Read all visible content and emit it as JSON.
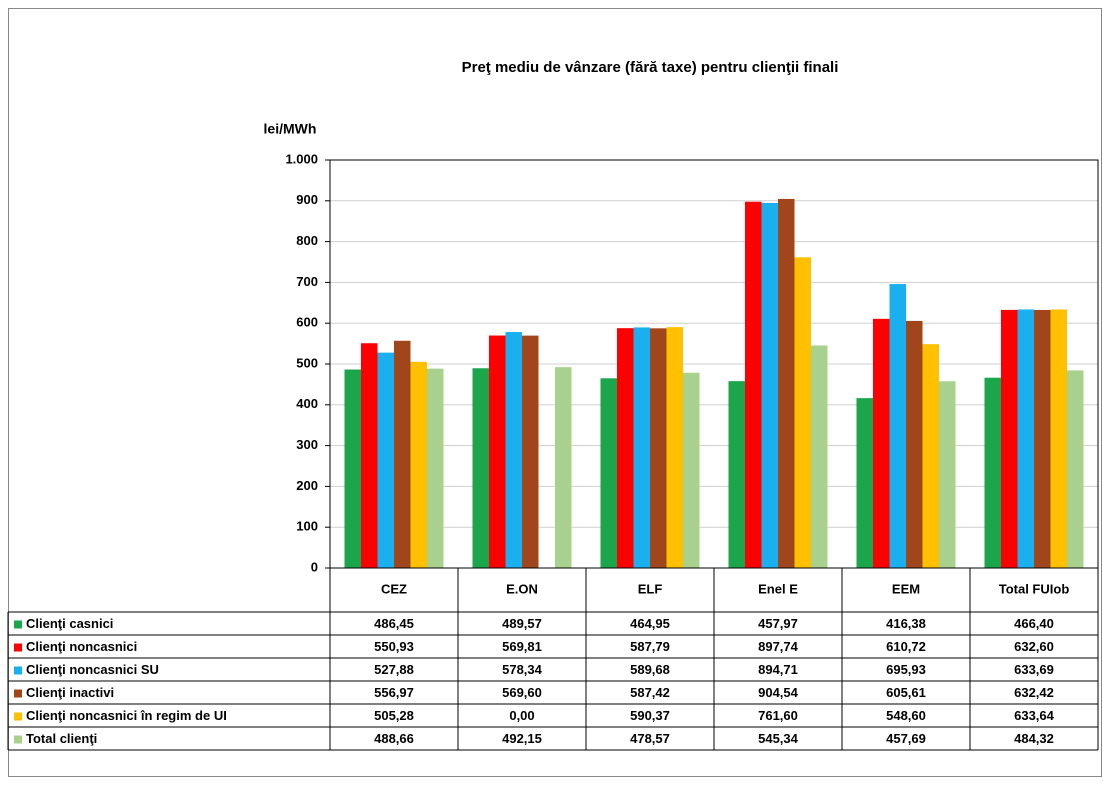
{
  "chart_data": {
    "type": "bar",
    "title": "Preţ mediu de vânzare (fără taxe) pentru clienţii finali",
    "y_label": "lei/MWh",
    "categories": [
      "CEZ",
      "E.ON",
      "ELF",
      "Enel E",
      "EEM",
      "Total FUIob"
    ],
    "ylim": [
      0,
      1000
    ],
    "yticks": [
      0,
      100,
      200,
      300,
      400,
      500,
      600,
      700,
      800,
      900,
      {
        "value": 1000,
        "label": "1.000"
      }
    ],
    "grid": true,
    "series": [
      {
        "name": "Clienţi casnici",
        "color": "#1aa64a",
        "values": [
          486.45,
          489.57,
          464.95,
          457.97,
          416.38,
          466.4
        ],
        "value_labels": [
          "486,45",
          "489,57",
          "464,95",
          "457,97",
          "416,38",
          "466,40"
        ]
      },
      {
        "name": "Clienţi noncasnici",
        "color": "#ff0000",
        "values": [
          550.93,
          569.81,
          587.79,
          897.74,
          610.72,
          632.6
        ],
        "value_labels": [
          "550,93",
          "569,81",
          "587,79",
          "897,74",
          "610,72",
          "632,60"
        ]
      },
      {
        "name": "Clienţi noncasnici SU",
        "color": "#1ab0f0",
        "values": [
          527.88,
          578.34,
          589.68,
          894.71,
          695.93,
          633.69
        ],
        "value_labels": [
          "527,88",
          "578,34",
          "589,68",
          "894,71",
          "695,93",
          "633,69"
        ]
      },
      {
        "name": "Clienţi inactivi",
        "color": "#a0461a",
        "values": [
          556.97,
          569.6,
          587.42,
          904.54,
          605.61,
          632.42
        ],
        "value_labels": [
          "556,97",
          "569,60",
          "587,42",
          "904,54",
          "605,61",
          "632,42"
        ]
      },
      {
        "name": "Clienţi noncasnici în regim de UI",
        "color": "#ffc000",
        "values": [
          505.28,
          0.0,
          590.37,
          761.6,
          548.6,
          633.64
        ],
        "value_labels": [
          "505,28",
          "0,00",
          "590,37",
          "761,60",
          "548,60",
          "633,64"
        ]
      },
      {
        "name": "Total clienţi",
        "color": "#a9d18e",
        "values": [
          488.66,
          492.15,
          478.57,
          545.34,
          457.69,
          484.32
        ],
        "value_labels": [
          "488,66",
          "492,15",
          "478,57",
          "545,34",
          "457,69",
          "484,32"
        ]
      }
    ]
  }
}
